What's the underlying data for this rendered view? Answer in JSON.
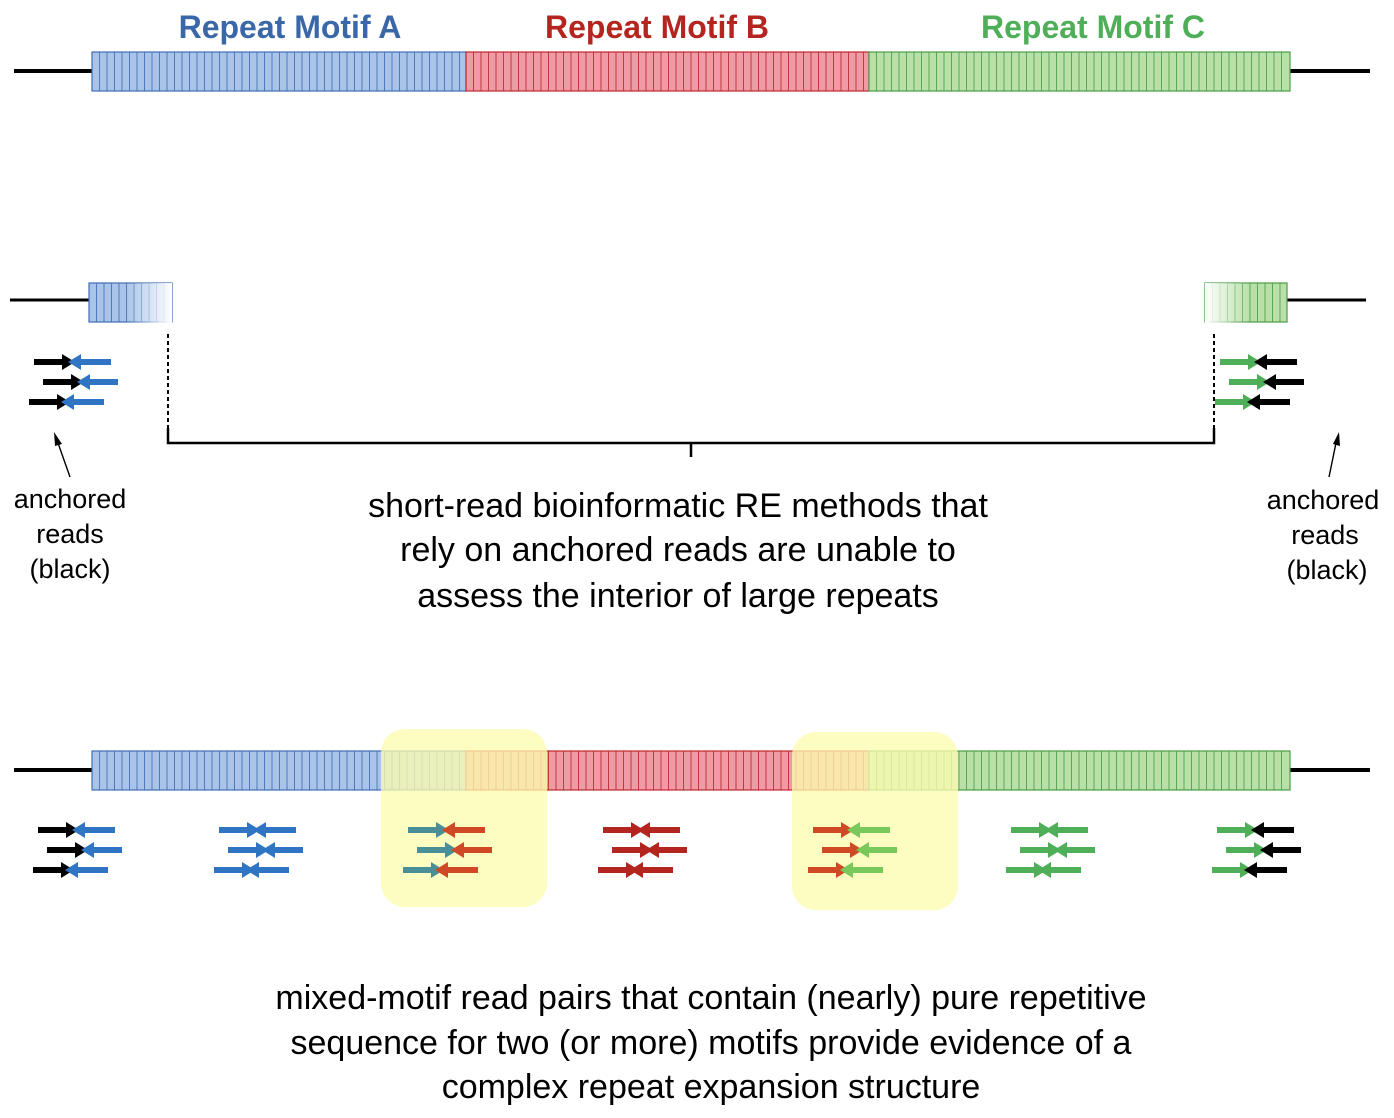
{
  "motifs": [
    {
      "name": "Repeat Motif A",
      "color": "#3a67a8",
      "fill": "#a9c4e8",
      "stroke": "#3f6fb5"
    },
    {
      "name": "Repeat Motif B",
      "color": "#b5251f",
      "fill": "#ee9ba6",
      "stroke": "#c0282d"
    },
    {
      "name": "Repeat Motif C",
      "color": "#4fae58",
      "fill": "#b8e0a8",
      "stroke": "#4a9d45"
    }
  ],
  "colors": {
    "anchored": "#000000",
    "read_a": "#2f75c4",
    "read_b": "#b5251f",
    "read_c": "#4fae58",
    "mixed_ab_a": "#4a8f98",
    "mixed_ab_b": "#cf4a24",
    "mixed_bc_b": "#cf4a24",
    "mixed_bc_c": "#78c85a",
    "highlight": "#fdfbb0"
  },
  "left_label": {
    "line1": "anchored",
    "line2": "reads",
    "line3": "(black)"
  },
  "right_label": {
    "line1": "anchored",
    "line2": "reads",
    "line3": "(black)"
  },
  "middle_caption": {
    "line1": "short-read bioinformatic RE methods that",
    "line2": "rely on anchored reads are unable to",
    "line3": "assess the interior of large repeats"
  },
  "bottom_caption": {
    "line1": "mixed-motif read pairs that contain (nearly) pure repetitive",
    "line2": "sequence for two (or more) motifs provide evidence of a",
    "line3": "complex repeat expansion structure"
  }
}
